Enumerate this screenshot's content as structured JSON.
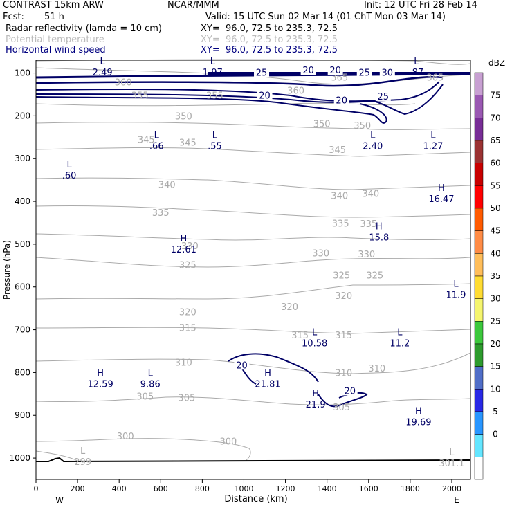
{
  "header": {
    "model": "CONTRAST 15km ARW",
    "center": "NCAR/MMM",
    "init": "Init: 12 UTC Fri 28 Feb 14",
    "fcst_label": "Fcst:",
    "fcst_value": "51 h",
    "valid": "Valid: 15 UTC Sun 02 Mar 14 (01 ChT Mon 03 Mar 14)",
    "field1": "Radar reflectivity (lamda = 10 cm)",
    "field1_xy": "XY=  96.0, 72.5 to 235.3, 72.5",
    "field2": "Potential temperature",
    "field2_xy": "XY=  96.0, 72.5 to 235.3, 72.5",
    "field3": "Horizontal wind speed",
    "field3_xy": "XY=  96.0, 72.5 to 235.3, 72.5"
  },
  "colors": {
    "theta": "#aaaaaa",
    "wind": "#000066",
    "ground": "#000000",
    "field2_text": "#bbbbbb",
    "field3_text": "#000080"
  },
  "chart_data": {
    "type": "cross-section",
    "xlabel": "Distance (km)",
    "ylabel": "Pressure (hPa)",
    "xlim": [
      0,
      2090
    ],
    "ylim": [
      1050,
      70
    ],
    "x_ticks": [
      0,
      200,
      400,
      600,
      800,
      1000,
      1200,
      1400,
      1600,
      1800,
      2000
    ],
    "y_ticks": [
      100,
      200,
      300,
      400,
      500,
      600,
      700,
      800,
      900,
      1000
    ],
    "x_end_labels": {
      "left": "W",
      "right": "E"
    },
    "colorbar": {
      "unit": "dBZ",
      "levels": [
        75,
        70,
        65,
        60,
        55,
        50,
        45,
        40,
        35,
        30,
        25,
        20,
        15,
        10,
        5,
        0
      ],
      "colors": [
        "#c8a0d2",
        "#9a58b2",
        "#782d96",
        "#9b3232",
        "#c80000",
        "#ff0000",
        "#ff5a00",
        "#ff8c46",
        "#ffbe5a",
        "#ffdc32",
        "#f5f56e",
        "#3cc83c",
        "#2d9b2d",
        "#506ec8",
        "#2828e6",
        "#2896ff",
        "#64e6ff",
        "#ffffff"
      ]
    },
    "theta_labels": [
      {
        "x": 500,
        "p": 152,
        "v": "355"
      },
      {
        "x": 860,
        "p": 152,
        "v": "355"
      },
      {
        "x": 420,
        "p": 121,
        "v": "360"
      },
      {
        "x": 1250,
        "p": 140,
        "v": "360"
      },
      {
        "x": 1460,
        "p": 110,
        "v": "365"
      },
      {
        "x": 1920,
        "p": 110,
        "v": "365"
      },
      {
        "x": 710,
        "p": 200,
        "v": "350"
      },
      {
        "x": 1375,
        "p": 218,
        "v": "350"
      },
      {
        "x": 1570,
        "p": 222,
        "v": "350"
      },
      {
        "x": 530,
        "p": 255,
        "v": "345"
      },
      {
        "x": 730,
        "p": 262,
        "v": "345"
      },
      {
        "x": 1450,
        "p": 279,
        "v": "345"
      },
      {
        "x": 630,
        "p": 360,
        "v": "340"
      },
      {
        "x": 1460,
        "p": 386,
        "v": "340"
      },
      {
        "x": 1610,
        "p": 381,
        "v": "340"
      },
      {
        "x": 600,
        "p": 426,
        "v": "335"
      },
      {
        "x": 1465,
        "p": 451,
        "v": "335"
      },
      {
        "x": 1600,
        "p": 452,
        "v": "335"
      },
      {
        "x": 740,
        "p": 503,
        "v": "330"
      },
      {
        "x": 1370,
        "p": 520,
        "v": "330"
      },
      {
        "x": 1590,
        "p": 523,
        "v": "330"
      },
      {
        "x": 730,
        "p": 548,
        "v": "325"
      },
      {
        "x": 1470,
        "p": 572,
        "v": "325"
      },
      {
        "x": 1630,
        "p": 572,
        "v": "325"
      },
      {
        "x": 1480,
        "p": 620,
        "v": "320"
      },
      {
        "x": 1220,
        "p": 646,
        "v": "320"
      },
      {
        "x": 730,
        "p": 658,
        "v": "320"
      },
      {
        "x": 730,
        "p": 695,
        "v": "315"
      },
      {
        "x": 1270,
        "p": 712,
        "v": "315"
      },
      {
        "x": 1480,
        "p": 712,
        "v": "315"
      },
      {
        "x": 710,
        "p": 776,
        "v": "310"
      },
      {
        "x": 1480,
        "p": 800,
        "v": "310"
      },
      {
        "x": 1640,
        "p": 790,
        "v": "310"
      },
      {
        "x": 525,
        "p": 855,
        "v": "305"
      },
      {
        "x": 725,
        "p": 858,
        "v": "305"
      },
      {
        "x": 1470,
        "p": 880,
        "v": "305"
      },
      {
        "x": 430,
        "p": 948,
        "v": "300"
      },
      {
        "x": 925,
        "p": 960,
        "v": "300"
      }
    ],
    "wind_labels": [
      {
        "x": 1085,
        "p": 98,
        "v": "25"
      },
      {
        "x": 1310,
        "p": 93,
        "v": "20"
      },
      {
        "x": 1440,
        "p": 93,
        "v": "20"
      },
      {
        "x": 1580,
        "p": 98,
        "v": "25"
      },
      {
        "x": 1690,
        "p": 98,
        "v": "30"
      },
      {
        "x": 1100,
        "p": 152,
        "v": "20"
      },
      {
        "x": 1470,
        "p": 163,
        "v": "20"
      },
      {
        "x": 1670,
        "p": 154,
        "v": "25"
      },
      {
        "x": 990,
        "p": 782,
        "v": "20"
      },
      {
        "x": 1510,
        "p": 842,
        "v": "20"
      }
    ],
    "extrema": [
      {
        "type": "L",
        "x": 320,
        "p": 80,
        "value": "2.49"
      },
      {
        "type": "L",
        "x": 850,
        "p": 80,
        "value": "1.97"
      },
      {
        "type": "L",
        "x": 1830,
        "p": 80,
        "value": ".87"
      },
      {
        "type": "L",
        "x": 580,
        "p": 252,
        "value": ".66"
      },
      {
        "type": "L",
        "x": 860,
        "p": 252,
        "value": ".55"
      },
      {
        "type": "L",
        "x": 1620,
        "p": 252,
        "value": "2.40"
      },
      {
        "type": "L",
        "x": 1910,
        "p": 252,
        "value": "1.27"
      },
      {
        "type": "L",
        "x": 160,
        "p": 321,
        "value": ".60"
      },
      {
        "type": "H",
        "x": 1950,
        "p": 376,
        "value": "16.47"
      },
      {
        "type": "H",
        "x": 1650,
        "p": 465,
        "value": "15.8"
      },
      {
        "type": "H",
        "x": 710,
        "p": 494,
        "value": "12.61"
      },
      {
        "type": "L",
        "x": 2020,
        "p": 600,
        "value": "11.9"
      },
      {
        "type": "L",
        "x": 1340,
        "p": 713,
        "value": "10.58"
      },
      {
        "type": "L",
        "x": 1750,
        "p": 713,
        "value": "11.2"
      },
      {
        "type": "H",
        "x": 1115,
        "p": 808,
        "value": "21.81"
      },
      {
        "type": "H",
        "x": 310,
        "p": 808,
        "value": "12.59"
      },
      {
        "type": "L",
        "x": 550,
        "p": 808,
        "value": "9.86"
      },
      {
        "type": "H",
        "x": 1345,
        "p": 856,
        "value": "21.9"
      },
      {
        "type": "H",
        "x": 1840,
        "p": 897,
        "value": "19.69"
      },
      {
        "type": "L",
        "x": 225,
        "p": 990,
        "value": "299"
      },
      {
        "type": "L",
        "x": 2000,
        "p": 993,
        "value": "301.1"
      }
    ]
  }
}
